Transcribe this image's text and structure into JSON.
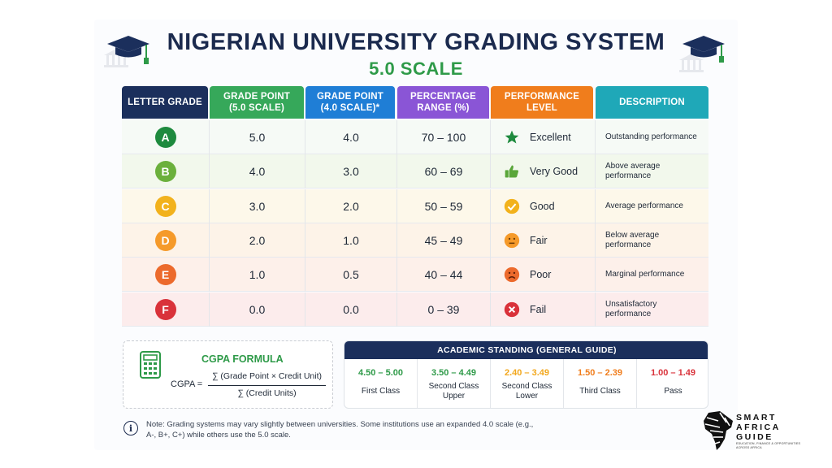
{
  "header": {
    "title": "NIGERIAN UNIVERSITY GRADING SYSTEM",
    "subtitle": "5.0 SCALE"
  },
  "table": {
    "columns": [
      {
        "label": "LETTER GRADE",
        "color": "#1b2f5c"
      },
      {
        "label": "GRADE POINT\n(5.0 SCALE)",
        "color": "#36a85a"
      },
      {
        "label": "GRADE POINT\n(4.0 SCALE)*",
        "color": "#1f7ed6"
      },
      {
        "label": "PERCENTAGE\nRANGE (%)",
        "color": "#8a55d6"
      },
      {
        "label": "PERFORMANCE\nLEVEL",
        "color": "#f07d1c"
      },
      {
        "label": "DESCRIPTION",
        "color": "#1fa8b8"
      }
    ],
    "rows": [
      {
        "grade": "A",
        "gp5": "5.0",
        "gp4": "4.0",
        "range": "70 – 100",
        "level": "Excellent",
        "desc": "Outstanding performance",
        "badge_color": "#1e8a3e",
        "row_bg": "#f6faf6",
        "icon": "star-icon",
        "icon_color": "#1e8a3e"
      },
      {
        "grade": "B",
        "gp5": "4.0",
        "gp4": "3.0",
        "range": "60 – 69",
        "level": "Very Good",
        "desc": "Above average performance",
        "badge_color": "#6bb03c",
        "row_bg": "#f2f8ec",
        "icon": "thumbs-up-icon",
        "icon_color": "#5aa63a"
      },
      {
        "grade": "C",
        "gp5": "3.0",
        "gp4": "2.0",
        "range": "50 – 59",
        "level": "Good",
        "desc": "Average performance",
        "badge_color": "#f2b21c",
        "row_bg": "#fdf8ea",
        "icon": "check-circle-icon",
        "icon_color": "#f2b21c"
      },
      {
        "grade": "D",
        "gp5": "2.0",
        "gp4": "1.0",
        "range": "45 – 49",
        "level": "Fair",
        "desc": "Below average performance",
        "badge_color": "#f59a2a",
        "row_bg": "#fdf3e8",
        "icon": "neutral-face-icon",
        "icon_color": "#f59a2a"
      },
      {
        "grade": "E",
        "gp5": "1.0",
        "gp4": "0.5",
        "range": "40 – 44",
        "level": "Poor",
        "desc": "Marginal performance",
        "badge_color": "#ec6a2c",
        "row_bg": "#fdf0ea",
        "icon": "sad-face-icon",
        "icon_color": "#ec6a2c"
      },
      {
        "grade": "F",
        "gp5": "0.0",
        "gp4": "0.0",
        "range": "0 – 39",
        "level": "Fail",
        "desc": "Unsatisfactory performance",
        "badge_color": "#d9323a",
        "row_bg": "#fcecec",
        "icon": "x-circle-icon",
        "icon_color": "#d9323a"
      }
    ]
  },
  "formula": {
    "title": "CGPA FORMULA",
    "lhs": "CGPA =",
    "numerator": "∑ (Grade Point × Credit Unit)",
    "denominator": "∑ (Credit Units)",
    "icon": "calculator-icon"
  },
  "standing": {
    "title": "ACADEMIC STANDING (GENERAL GUIDE)",
    "items": [
      {
        "range": "4.50 – 5.00",
        "label": "First Class",
        "color": "#2e9a48"
      },
      {
        "range": "3.50 – 4.49",
        "label": "Second Class Upper",
        "color": "#2e9a48"
      },
      {
        "range": "2.40 – 3.49",
        "label": "Second Class Lower",
        "color": "#f2a71c"
      },
      {
        "range": "1.50 – 2.39",
        "label": "Third Class",
        "color": "#f07d1c"
      },
      {
        "range": "1.00 – 1.49",
        "label": "Pass",
        "color": "#d9323a"
      }
    ]
  },
  "note": {
    "text": "Note: Grading systems may vary slightly between universities. Some institutions use an expanded 4.0 scale (e.g., A-, B+, C+) while others use the 5.0 scale."
  },
  "logo": {
    "line1": "SMART",
    "line2": "AFRICA",
    "line3": "GUIDE",
    "tagline": "EDUCATION, FINANCE & OPPORTUNITIES ACROSS AFRICA"
  }
}
